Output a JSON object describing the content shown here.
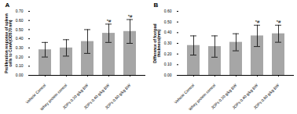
{
  "chart_data": [
    {
      "type": "bar",
      "title": "A",
      "categories": [
        "Vehicle Control",
        "Whey protein control",
        "JOPs 0.20 g/kg BW",
        "JOPs 0.40 g/kg BW",
        "JOPs 0.80 g/kg BW"
      ],
      "values": [
        0.28,
        0.3,
        0.37,
        0.46,
        0.48
      ],
      "errors": [
        0.08,
        0.09,
        0.13,
        0.1,
        0.13
      ],
      "annotations": [
        null,
        null,
        null,
        "*#",
        "*#"
      ],
      "y_label": "Proliferation response of spleen cells to ConA(OD570 nm)",
      "color": "#a6a6a6",
      "ylim": [
        0,
        0.7
      ],
      "yticks": [
        {
          "value": 0,
          "label": "0.00"
        },
        {
          "value": 0.1,
          "label": "0.10"
        },
        {
          "value": 0.2,
          "label": "0.20"
        },
        {
          "value": 0.3,
          "label": "0.30"
        },
        {
          "value": 0.4,
          "label": "0.40"
        },
        {
          "value": 0.5,
          "label": "0.50"
        },
        {
          "value": 0.6,
          "label": "0.60"
        },
        {
          "value": 0.7,
          "label": "0.70"
        }
      ]
    },
    {
      "type": "bar",
      "title": "B",
      "categories": [
        "Vehicle Control",
        "Whey protein control",
        "JOPs 0.20 g/kg BW",
        "JOPs 0.40 g/kg BW",
        "JOPs 0.80 g/kg BW"
      ],
      "values": [
        0.28,
        0.27,
        0.31,
        0.37,
        0.39
      ],
      "errors": [
        0.09,
        0.1,
        0.08,
        0.1,
        0.08
      ],
      "annotations": [
        null,
        null,
        null,
        "*#",
        "*#"
      ],
      "y_label": "Difference of footpad thickness(mm)",
      "color": "#a6a6a6",
      "ylim": [
        0,
        0.6
      ],
      "yticks": [
        {
          "value": 0,
          "label": "0.00"
        },
        {
          "value": 0.1,
          "label": "0.10"
        },
        {
          "value": 0.2,
          "label": "0.20"
        },
        {
          "value": 0.3,
          "label": "0.30"
        },
        {
          "value": 0.4,
          "label": "0.40"
        },
        {
          "value": 0.5,
          "label": "0.50"
        },
        {
          "value": 0.6,
          "label": "0.60"
        }
      ]
    }
  ]
}
